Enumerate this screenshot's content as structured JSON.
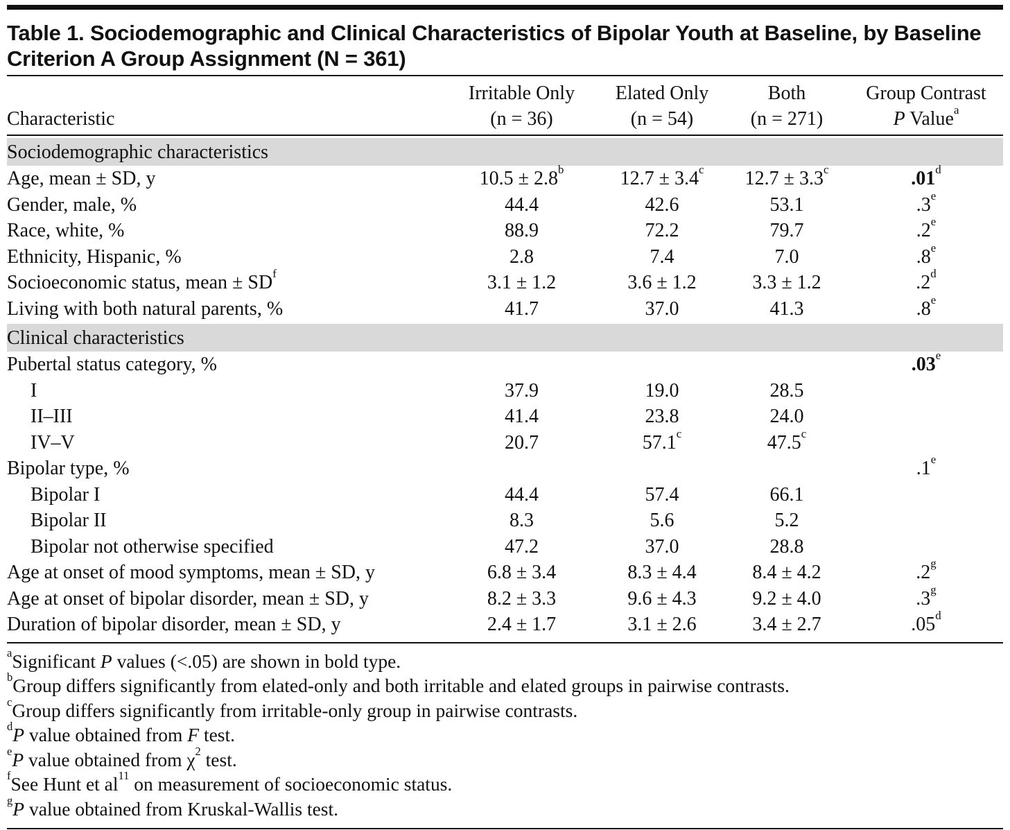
{
  "title": "Table 1. Sociodemographic and Clinical Characteristics of Bipolar Youth at Baseline, by Baseline Criterion A Group Assignment (N = 361)",
  "table": {
    "header": [
      [
        "Characteristic"
      ],
      [
        "Irritable Only",
        "(n = 36)"
      ],
      [
        "Elated Only",
        "(n = 54)"
      ],
      [
        "Both",
        "(n = 271)"
      ],
      [
        "Group Contrast",
        [
          {
            "text": "P",
            "style": "italic"
          },
          " Value",
          {
            "text": "a",
            "style": "sup"
          }
        ]
      ]
    ],
    "sections": [
      {
        "heading": "Sociodemographic characteristics",
        "rows": [
          {
            "label": "Age, mean ± SD, y",
            "cells": [
              [
                {
                  "text": "10.5 ± 2.8"
                },
                {
                  "text": "b",
                  "style": "sup"
                }
              ],
              [
                {
                  "text": "12.7 ± 3.4"
                },
                {
                  "text": "c",
                  "style": "sup"
                }
              ],
              [
                {
                  "text": "12.7 ± 3.3"
                },
                {
                  "text": "c",
                  "style": "sup"
                }
              ],
              [
                {
                  "text": ".01",
                  "style": "bold"
                },
                {
                  "text": "d",
                  "style": "sup"
                }
              ]
            ]
          },
          {
            "label": "Gender, male, %",
            "cells": [
              "44.4",
              "42.6",
              "53.1",
              [
                {
                  "text": ".3"
                },
                {
                  "text": "e",
                  "style": "sup"
                }
              ]
            ]
          },
          {
            "label": "Race, white, %",
            "cells": [
              "88.9",
              "72.2",
              "79.7",
              [
                {
                  "text": ".2"
                },
                {
                  "text": "e",
                  "style": "sup"
                }
              ]
            ]
          },
          {
            "label": "Ethnicity, Hispanic, %",
            "cells": [
              "2.8",
              "7.4",
              "7.0",
              [
                {
                  "text": ".8"
                },
                {
                  "text": "e",
                  "style": "sup"
                }
              ]
            ]
          },
          {
            "label": [
              {
                "text": "Socioeconomic status, mean ± SD"
              },
              {
                "text": "f",
                "style": "sup"
              }
            ],
            "cells": [
              "3.1 ± 1.2",
              "3.6 ± 1.2",
              "3.3 ± 1.2",
              [
                {
                  "text": ".2"
                },
                {
                  "text": "d",
                  "style": "sup"
                }
              ]
            ]
          },
          {
            "label": "Living with both natural parents, %",
            "cells": [
              "41.7",
              "37.0",
              "41.3",
              [
                {
                  "text": ".8"
                },
                {
                  "text": "e",
                  "style": "sup"
                }
              ]
            ]
          }
        ]
      },
      {
        "heading": "Clinical characteristics",
        "rows": [
          {
            "label": "Pubertal status category, %",
            "cells": [
              null,
              null,
              null,
              [
                {
                  "text": ".03",
                  "style": "bold"
                },
                {
                  "text": "e",
                  "style": "sup"
                }
              ]
            ],
            "subrows": [
              {
                "label": "I",
                "cells": [
                  "37.9",
                  "19.0",
                  "28.5",
                  null
                ]
              },
              {
                "label": "II–III",
                "cells": [
                  "41.4",
                  "23.8",
                  "24.0",
                  null
                ]
              },
              {
                "label": "IV–V",
                "cells": [
                  "20.7",
                  [
                    {
                      "text": "57.1"
                    },
                    {
                      "text": "c",
                      "style": "sup"
                    }
                  ],
                  [
                    {
                      "text": "47.5"
                    },
                    {
                      "text": "c",
                      "style": "sup"
                    }
                  ],
                  null
                ]
              }
            ]
          },
          {
            "label": "Bipolar type, %",
            "cells": [
              null,
              null,
              null,
              [
                {
                  "text": ".1"
                },
                {
                  "text": "e",
                  "style": "sup"
                }
              ]
            ],
            "subrows": [
              {
                "label": "Bipolar I",
                "cells": [
                  "44.4",
                  "57.4",
                  "66.1",
                  null
                ]
              },
              {
                "label": "Bipolar II",
                "cells": [
                  "8.3",
                  "5.6",
                  "5.2",
                  null
                ]
              },
              {
                "label": "Bipolar not otherwise specified",
                "cells": [
                  "47.2",
                  "37.0",
                  "28.8",
                  null
                ]
              }
            ]
          },
          {
            "label": "Age at onset of mood symptoms, mean ± SD, y",
            "cells": [
              "6.8 ± 3.4",
              "8.3 ± 4.4",
              "8.4 ± 4.2",
              [
                {
                  "text": ".2"
                },
                {
                  "text": "g",
                  "style": "sup"
                }
              ]
            ]
          },
          {
            "label": "Age at onset of bipolar disorder, mean ± SD, y",
            "cells": [
              "8.2 ± 3.3",
              "9.6 ± 4.3",
              "9.2 ± 4.0",
              [
                {
                  "text": ".3"
                },
                {
                  "text": "g",
                  "style": "sup"
                }
              ]
            ]
          },
          {
            "label": "Duration of bipolar disorder, mean ± SD, y",
            "cells": [
              "2.4 ± 1.7",
              "3.1 ± 2.6",
              "3.4 ± 2.7",
              [
                {
                  "text": ".05"
                },
                {
                  "text": "d",
                  "style": "sup"
                }
              ]
            ]
          }
        ]
      }
    ]
  },
  "footnotes": [
    {
      "mark": "a",
      "parts": [
        "Significant ",
        {
          "text": "P",
          "style": "italic"
        },
        " values (<.05) are shown in bold type."
      ]
    },
    {
      "mark": "b",
      "parts": [
        "Group differs significantly from elated-only and both irritable and elated groups in pairwise contrasts."
      ]
    },
    {
      "mark": "c",
      "parts": [
        "Group differs significantly from irritable-only group in pairwise contrasts."
      ]
    },
    {
      "mark": "d",
      "parts": [
        {
          "text": "P",
          "style": "italic"
        },
        " value obtained from ",
        {
          "text": "F",
          "style": "italic"
        },
        " test."
      ]
    },
    {
      "mark": "e",
      "parts": [
        {
          "text": "P",
          "style": "italic"
        },
        " value obtained from χ",
        {
          "text": "2",
          "style": "sup"
        },
        " test."
      ]
    },
    {
      "mark": "f",
      "parts": [
        "See Hunt et al",
        {
          "text": "11",
          "style": "sup"
        },
        " on measurement of socioeconomic status."
      ]
    },
    {
      "mark": "g",
      "parts": [
        {
          "text": "P",
          "style": "italic"
        },
        " value obtained from Kruskal-Wallis test."
      ]
    }
  ]
}
